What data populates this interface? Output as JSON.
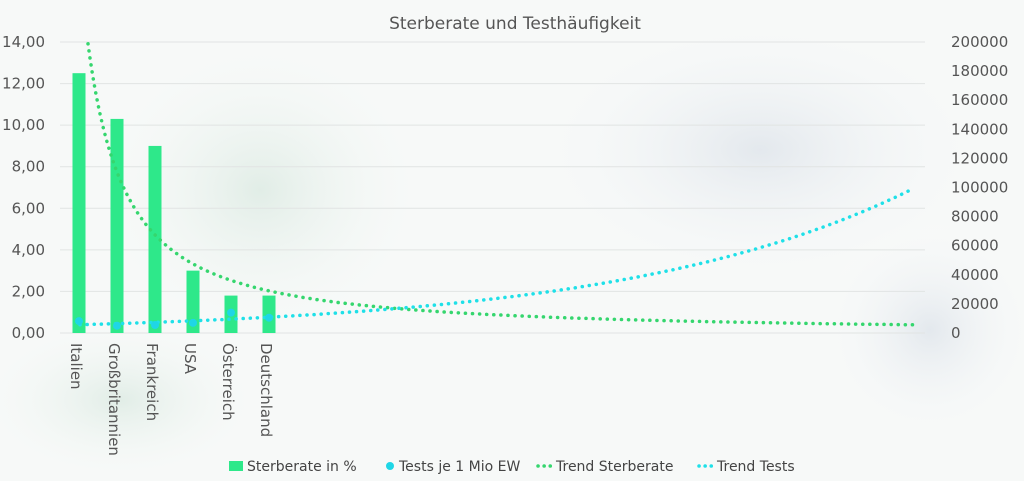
{
  "chart_data": {
    "type": "bar",
    "title": "Sterberate und Testhäufigkeit",
    "categories": [
      "Italien",
      "Großbritannien",
      "Frankreich",
      "USA",
      "Österreich",
      "Deutschland"
    ],
    "series": [
      {
        "name": "Sterberate in %",
        "type": "bar",
        "axis": "left",
        "values": [
          12.5,
          10.3,
          9.0,
          3.0,
          1.8,
          1.8
        ],
        "color": "#2ee88a"
      },
      {
        "name": "Tests je 1 Mio EW",
        "type": "scatter",
        "axis": "right",
        "values": [
          8200,
          5000,
          5500,
          7000,
          14000,
          10500
        ],
        "color": "#1fd6e6"
      },
      {
        "name": "Trend Sterberate",
        "type": "trendline",
        "axis": "left",
        "trend": "power",
        "color": "#35d66e"
      },
      {
        "name": "Trend Tests",
        "type": "trendline",
        "axis": "right",
        "trend": "exponential",
        "color": "#1fe0e8"
      }
    ],
    "y_left": {
      "ylim": [
        0,
        14
      ],
      "ticks": [
        "0,00",
        "2,00",
        "4,00",
        "6,00",
        "8,00",
        "10,00",
        "12,00",
        "14,00"
      ]
    },
    "y_right": {
      "ylim": [
        0,
        200000
      ],
      "ticks": [
        "0",
        "20000",
        "40000",
        "60000",
        "80000",
        "100000",
        "120000",
        "140000",
        "160000",
        "180000",
        "200000"
      ]
    },
    "grid": true,
    "legend_position": "bottom"
  }
}
